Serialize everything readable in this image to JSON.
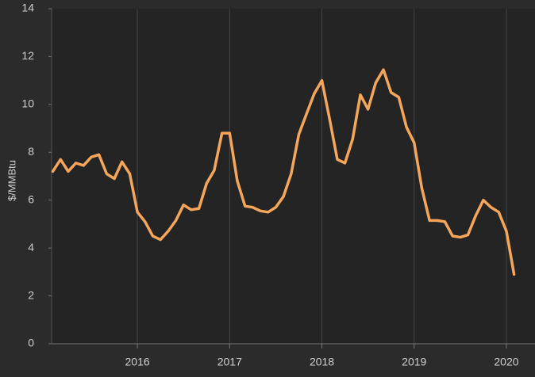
{
  "chart_data": {
    "type": "line",
    "y_label": "$/MMBtu",
    "x": [
      2015.083,
      2015.167,
      2015.25,
      2015.333,
      2015.417,
      2015.5,
      2015.583,
      2015.667,
      2015.75,
      2015.833,
      2015.917,
      2016.0,
      2016.083,
      2016.167,
      2016.25,
      2016.333,
      2016.417,
      2016.5,
      2016.583,
      2016.667,
      2016.75,
      2016.833,
      2016.917,
      2017.0,
      2017.083,
      2017.167,
      2017.25,
      2017.333,
      2017.417,
      2017.5,
      2017.583,
      2017.667,
      2017.75,
      2017.833,
      2017.917,
      2018.0,
      2018.083,
      2018.167,
      2018.25,
      2018.333,
      2018.417,
      2018.5,
      2018.583,
      2018.667,
      2018.75,
      2018.833,
      2018.917,
      2019.0,
      2019.083,
      2019.167,
      2019.25,
      2019.333,
      2019.417,
      2019.5,
      2019.583,
      2019.667,
      2019.75,
      2019.833,
      2019.917,
      2020.0,
      2020.083
    ],
    "series": [
      {
        "color": "#f5a65b",
        "values": [
          7.2,
          7.7,
          7.2,
          7.55,
          7.45,
          7.8,
          7.9,
          7.1,
          6.9,
          7.6,
          7.1,
          5.5,
          5.1,
          4.5,
          4.35,
          4.7,
          5.15,
          5.8,
          5.6,
          5.65,
          6.7,
          7.25,
          8.8,
          8.8,
          6.8,
          5.75,
          5.7,
          5.55,
          5.5,
          5.7,
          6.15,
          7.1,
          8.75,
          9.6,
          10.45,
          11.0,
          9.4,
          7.7,
          7.55,
          8.55,
          10.4,
          9.8,
          10.9,
          11.45,
          10.5,
          10.3,
          9.05,
          8.4,
          6.5,
          5.15,
          5.15,
          5.1,
          4.5,
          4.45,
          4.55,
          5.35,
          6.0,
          5.7,
          5.5,
          4.7,
          2.9
        ]
      }
    ],
    "xlim": [
      2015.07,
      2020.31
    ],
    "xticks": [
      2016,
      2017,
      2018,
      2019,
      2020
    ],
    "ylim": [
      0,
      14
    ],
    "yticks": [
      0,
      2,
      4,
      6,
      8,
      10,
      12,
      14
    ],
    "grid": "x"
  }
}
